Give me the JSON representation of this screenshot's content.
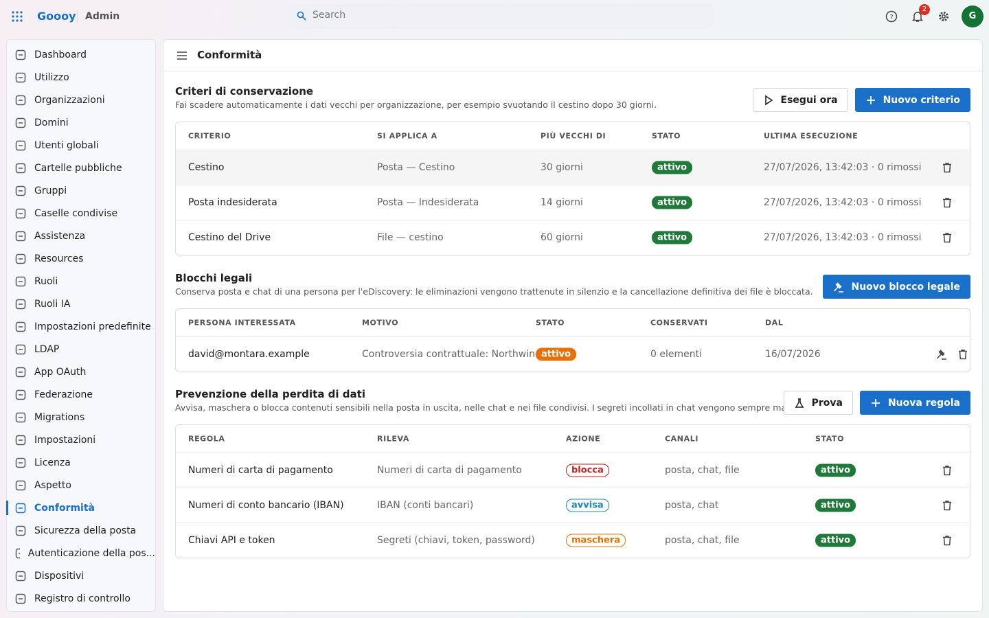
{
  "header": {
    "app_name": "Goooy",
    "section": "Admin",
    "search_placeholder": "Search",
    "notification_count": 2,
    "avatar_initial": "G"
  },
  "sidebar": {
    "active_index": 20,
    "items": [
      "Dashboard",
      "Utilizzo",
      "Organizzazioni",
      "Domini",
      "Utenti globali",
      "Cartelle pubbliche",
      "Gruppi",
      "Caselle condivise",
      "Assistenza",
      "Resources",
      "Ruoli",
      "Ruoli IA",
      "Impostazioni predefinite",
      "LDAP",
      "App OAuth",
      "Federazione",
      "Migrations",
      "Impostazioni",
      "Licenza",
      "Aspetto",
      "Conformità",
      "Sicurezza della posta",
      "Autenticazione della pos...",
      "Dispositivi",
      "Registro di controllo"
    ]
  },
  "page": {
    "title": "Conformità"
  },
  "sections": [
    {
      "title": "Criteri di conservazione",
      "description": "Fai scadere automaticamente i dati vecchi per organizzazione, per esempio svuotando il cestino dopo 30 giorni.",
      "buttons": [
        {
          "label": "Esegui ora",
          "primary": false
        },
        {
          "label": "Nuovo criterio",
          "primary": true
        }
      ],
      "columns": [
        "CRITERIO",
        "SI APPLICA A",
        "PIÙ VECCHI DI",
        "STATO",
        "ULTIMA ESECUZIONE"
      ],
      "rows": [
        [
          "Cestino",
          "Posta — Cestino",
          "30 giorni",
          {
            "badge": "attivo",
            "color": "#1f7a3a",
            "style": "filled"
          },
          "27/07/2026, 13:42:03 · 0 rimossi"
        ],
        [
          "Posta indesiderata",
          "Posta — Indesiderata",
          "14 giorni",
          {
            "badge": "attivo",
            "color": "#1f7a3a",
            "style": "filled"
          },
          "27/07/2026, 13:42:03 · 0 rimossi"
        ],
        [
          "Cestino del Drive",
          "File — cestino",
          "60 giorni",
          {
            "badge": "attivo",
            "color": "#1f7a3a",
            "style": "filled"
          },
          "27/07/2026, 13:42:03 · 0 rimossi"
        ]
      ]
    },
    {
      "title": "Blocchi legali",
      "description": "Conserva posta e chat di una persona per l'eDiscovery: le eliminazioni vengono trattenute in silenzio e la cancellazione definitiva dei file è bloccata.",
      "buttons": [
        {
          "label": "Nuovo blocco legale",
          "primary": true
        }
      ],
      "columns": [
        "PERSONA INTERESSATA",
        "MOTIVO",
        "STATO",
        "CONSERVATI",
        "DAL"
      ],
      "rows": [
        [
          "david@montara.example",
          "Controversia contrattuale: Northwind",
          {
            "badge": "attivo",
            "color": "#e8710a",
            "style": "filled"
          },
          "0 elementi",
          "16/07/2026"
        ]
      ]
    },
    {
      "title": "Prevenzione della perdita di dati",
      "description": "Avvisa, maschera o blocca contenuti sensibili nella posta in uscita, nelle chat e nei file condivisi. I segreti incollati in chat vengono sempre mascherati.",
      "buttons": [
        {
          "label": "Prova",
          "primary": false
        },
        {
          "label": "Nuova regola",
          "primary": true
        }
      ],
      "columns": [
        "REGOLA",
        "RILEVA",
        "AZIONE",
        "CANALI",
        "STATO"
      ],
      "rows": [
        [
          "Numeri di carta di pagamento",
          "Numeri di carta di pagamento",
          {
            "badge": "blocca",
            "color": "#c5221f",
            "style": "outline"
          },
          "posta, chat, file",
          {
            "badge": "attivo",
            "color": "#1f7a3a",
            "style": "filled"
          }
        ],
        [
          "Numeri di conto bancario (IBAN)",
          "IBAN (conti bancari)",
          {
            "badge": "avvisa",
            "color": "#1b87b8",
            "style": "outline"
          },
          "posta, chat",
          {
            "badge": "attivo",
            "color": "#1f7a3a",
            "style": "filled"
          }
        ],
        [
          "Chiavi API e token",
          "Segreti (chiavi, token, password)",
          {
            "badge": "maschera",
            "color": "#e37400",
            "style": "outline"
          },
          "posta, chat, file",
          {
            "badge": "attivo",
            "color": "#1f7a3a",
            "style": "filled"
          }
        ]
      ]
    }
  ]
}
